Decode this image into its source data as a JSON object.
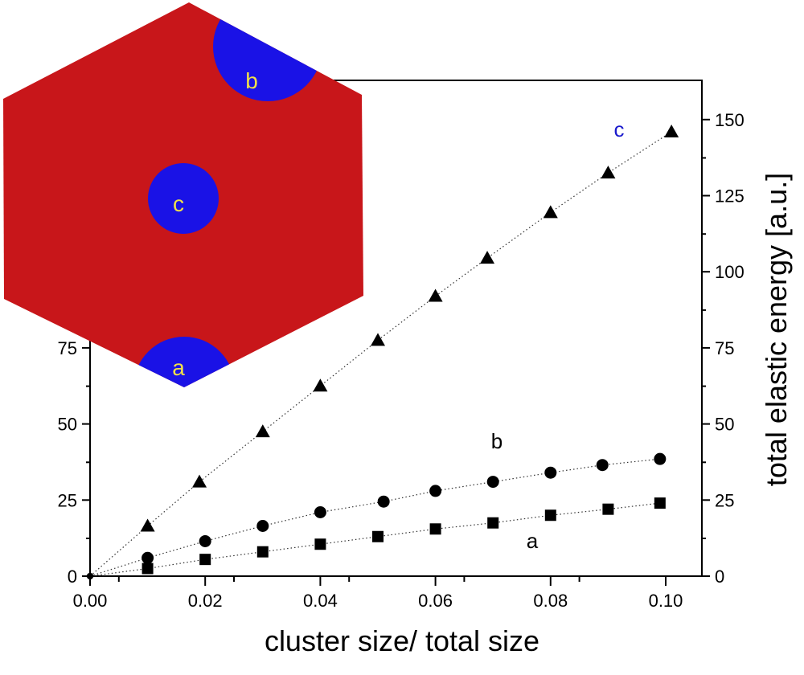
{
  "chart_data": {
    "type": "scatter",
    "xlabel": "cluster size/ total size",
    "ylabel": "total elastic energy [a.u.]",
    "xlim": [
      0,
      0.105
    ],
    "ylim": [
      0,
      163
    ],
    "x_ticks": [
      "0.00",
      "0.02",
      "0.04",
      "0.06",
      "0.08",
      "0.10"
    ],
    "x_tick_values": [
      0,
      0.02,
      0.04,
      0.06,
      0.08,
      0.1
    ],
    "y_ticks": [
      "0",
      "25",
      "50",
      "75",
      "100",
      "125",
      "150"
    ],
    "y_tick_values": [
      0,
      25,
      50,
      75,
      100,
      125,
      150
    ],
    "grid": false,
    "series": [
      {
        "name": "c",
        "marker": "triangle",
        "label_color": "#1a1acc",
        "x": [
          0,
          0.01,
          0.019,
          0.03,
          0.04,
          0.05,
          0.06,
          0.069,
          0.08,
          0.09,
          0.101
        ],
        "y": [
          0,
          16.5,
          31,
          47.5,
          62.5,
          77.5,
          92,
          104.5,
          119.5,
          132.5,
          146
        ]
      },
      {
        "name": "b",
        "marker": "circle",
        "label_color": "#000000",
        "x": [
          0,
          0.01,
          0.02,
          0.03,
          0.04,
          0.051,
          0.06,
          0.07,
          0.08,
          0.089,
          0.099
        ],
        "y": [
          0,
          6,
          11.5,
          16.5,
          21,
          24.5,
          28,
          31,
          34,
          36.5,
          38.5
        ]
      },
      {
        "name": "a",
        "marker": "square",
        "label_color": "#000000",
        "x": [
          0,
          0.01,
          0.02,
          0.03,
          0.04,
          0.05,
          0.06,
          0.07,
          0.08,
          0.09,
          0.099
        ],
        "y": [
          0,
          2.5,
          5.5,
          8,
          10.5,
          13,
          15.5,
          17.5,
          20,
          22,
          24
        ]
      }
    ],
    "inset": {
      "labels": [
        "a",
        "b",
        "c"
      ],
      "fill_color": "#c8161a",
      "cluster_color": "#1a12e6",
      "label_color": "#f0e04a"
    }
  }
}
